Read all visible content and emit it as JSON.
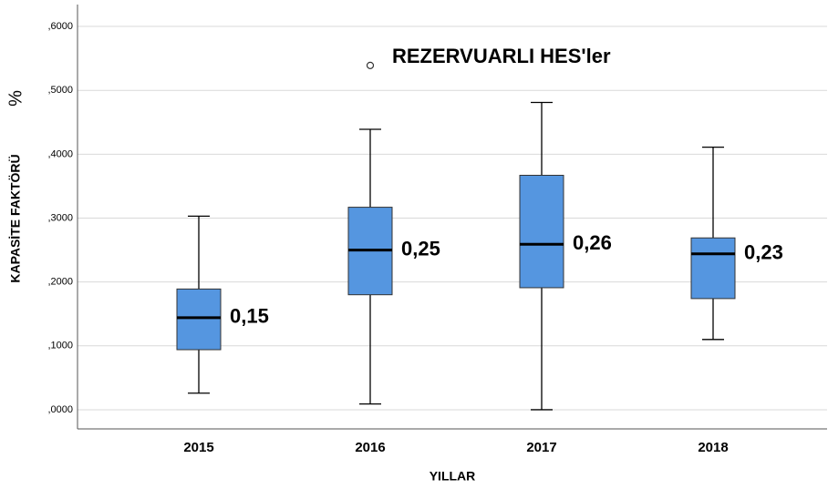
{
  "chart_data": {
    "type": "box",
    "title": "REZERVUARLI HES'ler",
    "x_label": "YILLAR",
    "y_label": "KAPASİTE FAKTÖRÜ",
    "y_unit": "%",
    "categories": [
      "2015",
      "2016",
      "2017",
      "2018"
    ],
    "boxes": [
      {
        "whislo": 0.026,
        "q1": 0.094,
        "med": 0.144,
        "q3": 0.189,
        "whishi": 0.303,
        "fliers": []
      },
      {
        "whislo": 0.009,
        "q1": 0.18,
        "med": 0.25,
        "q3": 0.317,
        "whishi": 0.439,
        "fliers": [
          0.539
        ]
      },
      {
        "whislo": 0.0,
        "q1": 0.191,
        "med": 0.259,
        "q3": 0.367,
        "whishi": 0.481,
        "fliers": []
      },
      {
        "whislo": 0.11,
        "q1": 0.174,
        "med": 0.244,
        "q3": 0.269,
        "whishi": 0.411,
        "fliers": []
      }
    ],
    "annotations": [
      "0,15",
      "0,25",
      "0,26",
      "0,23"
    ],
    "color": "#5596e0",
    "ylim": [
      -0.03,
      0.63
    ],
    "yticks": [
      {
        "value": 0,
        "label": ",0000"
      },
      {
        "value": 0.1,
        "label": ",1000"
      },
      {
        "value": 0.2,
        "label": ",2000"
      },
      {
        "value": 0.3,
        "label": ",3000"
      },
      {
        "value": 0.4,
        "label": ",4000"
      },
      {
        "value": 0.5,
        "label": ",5000"
      },
      {
        "value": 0.6,
        "label": ",6000"
      }
    ],
    "grid": true
  }
}
